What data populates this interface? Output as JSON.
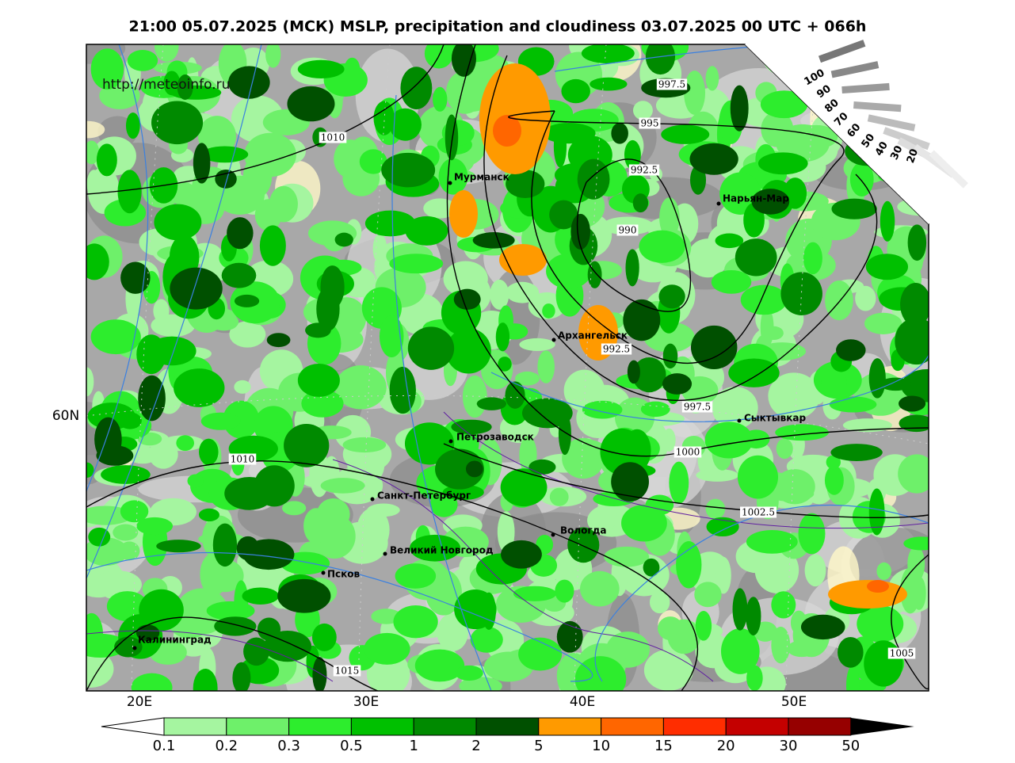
{
  "header": {
    "title": "21:00 05.07.2025 (МСК) MSLP, precipitation and cloudiness 03.07.2025 00 UTC + 066h"
  },
  "map": {
    "url": "http://meteoinfo.ru",
    "cities": [
      {
        "name": "Мурманск"
      },
      {
        "name": "Нарьян-Мар"
      },
      {
        "name": "Архангельск"
      },
      {
        "name": "Сыктывкар"
      },
      {
        "name": "Петрозаводск"
      },
      {
        "name": "Санкт-Петербург"
      },
      {
        "name": "Вологда"
      },
      {
        "name": "Великий Новгород"
      },
      {
        "name": "Псков"
      },
      {
        "name": "Калининград"
      }
    ],
    "isobar_labels": [
      "1010",
      "997.5",
      "995",
      "992.5",
      "990",
      "992.5",
      "997.5",
      "1000",
      "1010",
      "1002.5",
      "1005",
      "1015"
    ],
    "x_axis_labels": [
      "20E",
      "30E",
      "40E",
      "50E"
    ],
    "y_axis_labels": [
      "60N"
    ],
    "cloud_scale_labels": [
      "100",
      "90",
      "80",
      "70",
      "60",
      "50",
      "40",
      "30",
      "20"
    ]
  },
  "legend": {
    "ticks": [
      "0.1",
      "0.2",
      "0.3",
      "0.5",
      "1",
      "2",
      "5",
      "10",
      "15",
      "20",
      "30",
      "50"
    ],
    "colors": [
      "#a5f5a0",
      "#6ef06a",
      "#2ded2d",
      "#00c000",
      "#008a00",
      "#005000",
      "#ff9a00",
      "#ff6600",
      "#ff2d00",
      "#c40000",
      "#960000"
    ]
  }
}
